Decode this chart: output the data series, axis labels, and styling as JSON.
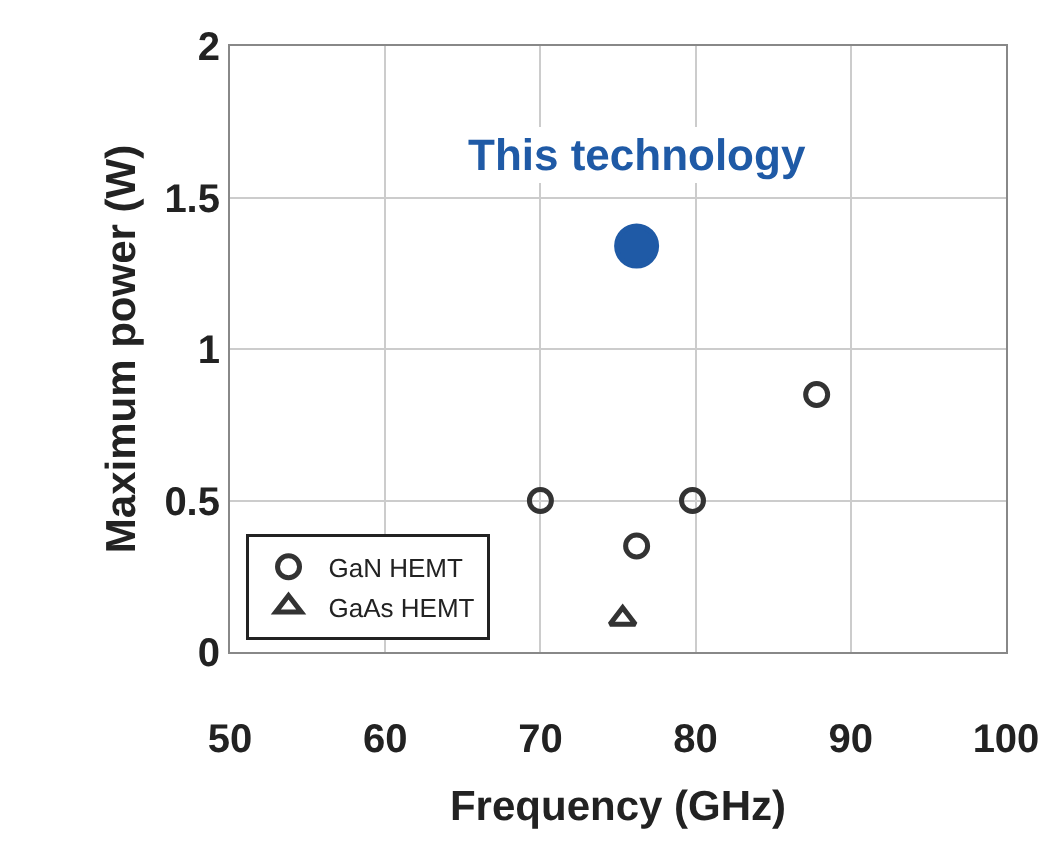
{
  "chart_data": {
    "type": "scatter",
    "xlabel": "Frequency (GHz)",
    "ylabel": "Maximum power (W)",
    "annotations": [
      {
        "text": "This technology",
        "x": 76.2,
        "y": 1.34
      }
    ],
    "xlim": [
      50,
      100
    ],
    "xticks": [
      50,
      60,
      70,
      80,
      90,
      100
    ],
    "ylim": [
      0,
      2
    ],
    "yticks": [
      0,
      0.5,
      1,
      1.5,
      2
    ],
    "grid": true,
    "legend": "bottom left",
    "series": [
      {
        "color": "#1f5aa6",
        "marker": "circle",
        "x": [
          76.2
        ],
        "values": [
          1.34
        ]
      },
      {
        "name": "GaN HEMT",
        "color": "#333333",
        "marker": "circle",
        "x": [
          70,
          79.8,
          76.2,
          87.8
        ],
        "values": [
          0.5,
          0.5,
          0.35,
          0.85
        ]
      },
      {
        "name": "GaAs HEMT",
        "color": "#333333",
        "marker": "triangle",
        "x": [
          75.3
        ],
        "values": [
          0.11
        ]
      }
    ]
  }
}
